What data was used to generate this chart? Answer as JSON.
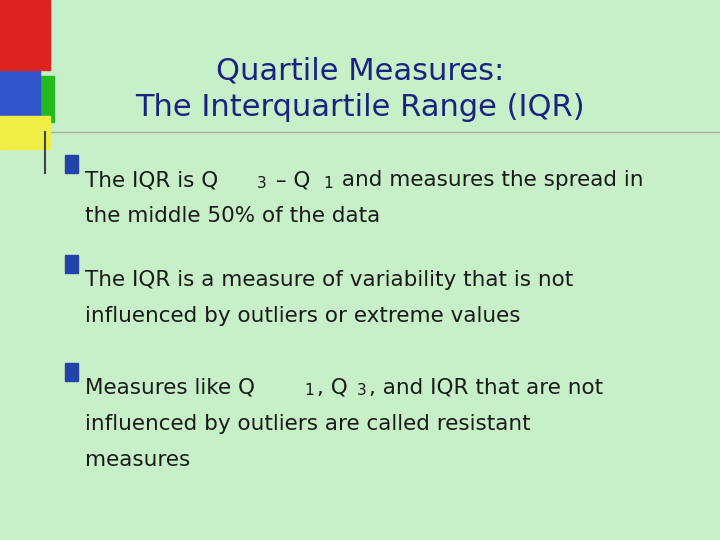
{
  "bg_color": "#c8f0c8",
  "title_line1": "Quartile Measures:",
  "title_line2": "The Interquartile Range (IQR)",
  "title_color": "#1a237e",
  "title_fontsize": 22,
  "text_color": "#1a1a1a",
  "bullet_square_color": "#2244aa",
  "bullet1_parts": [
    {
      "text": "The IQR is Q",
      "sub": false
    },
    {
      "text": "3",
      "sub": true
    },
    {
      "text": " – Q",
      "sub": false
    },
    {
      "text": "1",
      "sub": true
    },
    {
      "text": " and measures the spread in",
      "sub": false
    }
  ],
  "bullet1_line2": "the middle 50% of the data",
  "bullet2_line1": "The IQR is a measure of variability that is not",
  "bullet2_line2": "influenced by outliers or extreme values",
  "bullet3_parts_line1": [
    {
      "text": "Measures like Q",
      "sub": false
    },
    {
      "text": "1",
      "sub": true
    },
    {
      "text": ", Q",
      "sub": false
    },
    {
      "text": "3",
      "sub": true
    },
    {
      "text": ", and IQR that are not",
      "sub": false
    }
  ],
  "bullet3_line2": "influenced by outliers are called resistant",
  "bullet3_line3": "measures",
  "font_family": "DejaVu Sans",
  "body_fontsize": 15.5
}
